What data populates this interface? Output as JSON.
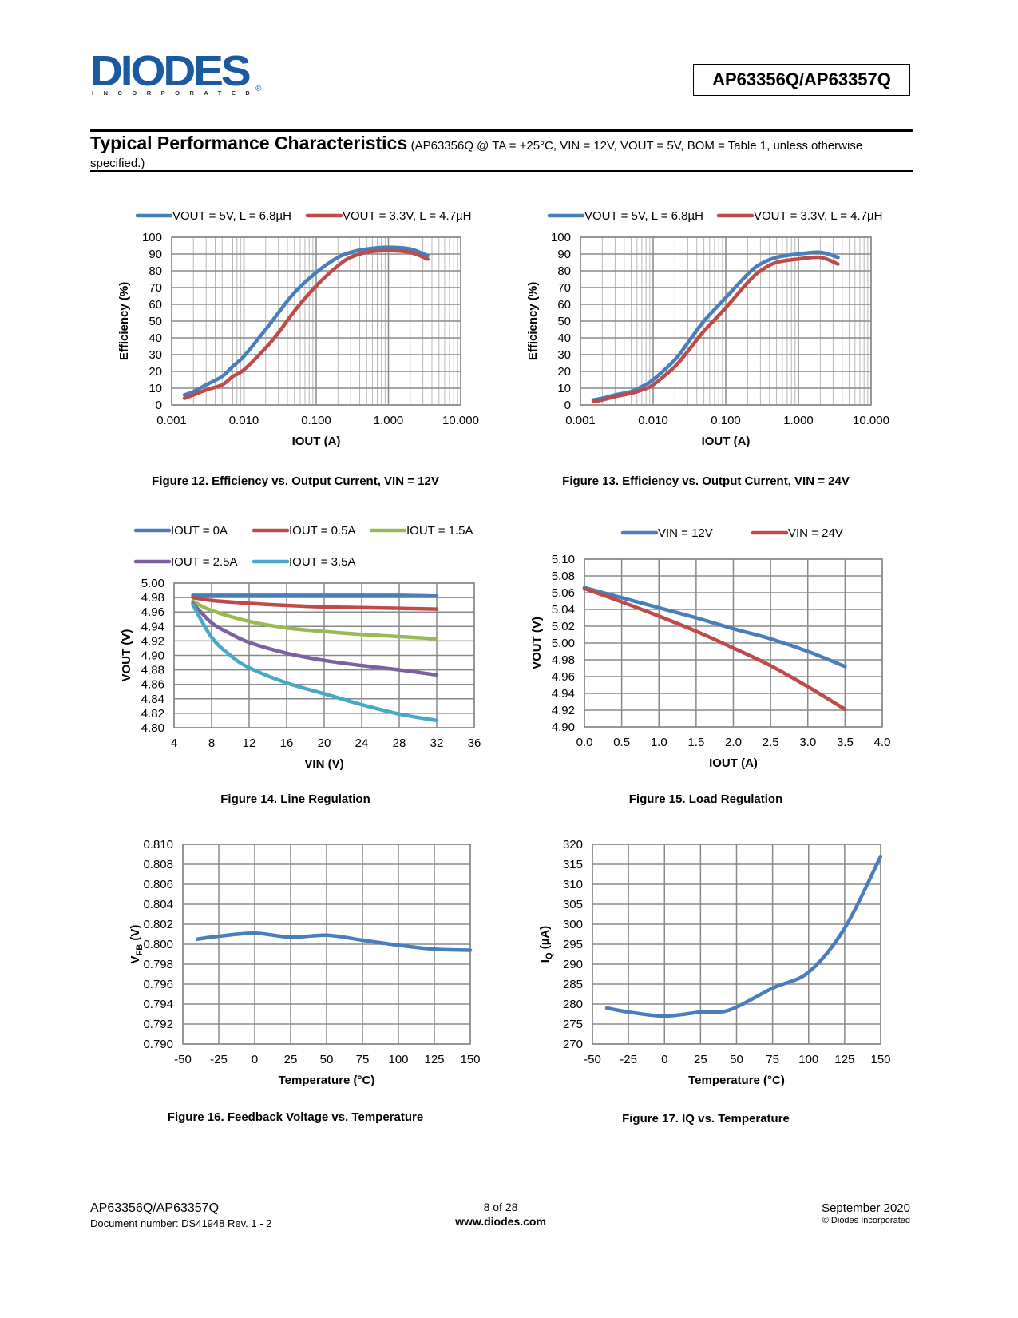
{
  "header": {
    "logo_main": "DIODES",
    "logo_sub": "INCORPORATED",
    "logo_reg": "®",
    "part_number": "AP63356Q/AP63357Q"
  },
  "section": {
    "title": "Typical Performance Characteristics",
    "conditions": "(AP63356Q @ TA = +25°C, VIN = 12V, VOUT = 5V, BOM = Table 1, unless otherwise specified.)"
  },
  "footer": {
    "part": "AP63356Q/AP63357Q",
    "doc_number": "Document number: DS41948 Rev. 1 - 2",
    "page": "8 of 28",
    "website": "www.diodes.com",
    "date": "September 2020",
    "copyright": "© Diodes Incorporated"
  },
  "colors": {
    "blue": "#4a7ebb",
    "red": "#be4b48",
    "green": "#98b954",
    "purple": "#7d60a0",
    "cyan": "#46aac5",
    "grid": "#999999"
  },
  "chart_data": [
    {
      "id": "fig12",
      "type": "line",
      "caption": "Figure 12. Efficiency vs. Output Current, VIN = 12V",
      "xlabel": "IOUT (A)",
      "ylabel": "Efficiency (%)",
      "xscale": "log",
      "xlim": [
        0.001,
        10
      ],
      "ylim": [
        0,
        100
      ],
      "xticks": [
        "0.001",
        "0.010",
        "0.100",
        "1.000",
        "10.000"
      ],
      "yticks": [
        "0",
        "10",
        "20",
        "30",
        "40",
        "50",
        "60",
        "70",
        "80",
        "90",
        "100"
      ],
      "legend": "top",
      "grid": true,
      "series": [
        {
          "name": "VOUT = 5V, L = 6.8µH",
          "color": "blue",
          "x": [
            0.0015,
            0.002,
            0.003,
            0.005,
            0.007,
            0.01,
            0.02,
            0.03,
            0.05,
            0.1,
            0.2,
            0.3,
            0.5,
            1.0,
            2.0,
            3.5
          ],
          "y": [
            6,
            8,
            12,
            17,
            23,
            29,
            45,
            55,
            67,
            79,
            88,
            91,
            93,
            94,
            93,
            89
          ]
        },
        {
          "name": "VOUT = 3.3V, L = 4.7µH",
          "color": "red",
          "x": [
            0.0015,
            0.002,
            0.003,
            0.005,
            0.007,
            0.01,
            0.02,
            0.03,
            0.05,
            0.1,
            0.2,
            0.3,
            0.5,
            1.0,
            2.0,
            3.5
          ],
          "y": [
            4,
            6,
            9,
            12,
            17,
            21,
            34,
            43,
            56,
            71,
            83,
            88,
            91,
            92,
            91,
            87
          ]
        }
      ]
    },
    {
      "id": "fig13",
      "type": "line",
      "caption": "Figure 13. Efficiency vs. Output Current, VIN = 24V",
      "xlabel": "IOUT (A)",
      "ylabel": "Efficiency (%)",
      "xscale": "log",
      "xlim": [
        0.001,
        10
      ],
      "ylim": [
        0,
        100
      ],
      "xticks": [
        "0.001",
        "0.010",
        "0.100",
        "1.000",
        "10.000"
      ],
      "yticks": [
        "0",
        "10",
        "20",
        "30",
        "40",
        "50",
        "60",
        "70",
        "80",
        "90",
        "100"
      ],
      "legend": "top",
      "grid": true,
      "series": [
        {
          "name": "VOUT = 5V, L = 6.8µH",
          "color": "blue",
          "x": [
            0.0015,
            0.002,
            0.003,
            0.005,
            0.007,
            0.01,
            0.02,
            0.03,
            0.05,
            0.1,
            0.2,
            0.3,
            0.5,
            1.0,
            2.0,
            3.5
          ],
          "y": [
            3,
            4,
            6,
            8,
            11,
            15,
            27,
            37,
            50,
            64,
            78,
            84,
            88,
            90,
            91,
            88
          ]
        },
        {
          "name": "VOUT = 3.3V, L = 4.7µH",
          "color": "red",
          "x": [
            0.0015,
            0.002,
            0.003,
            0.005,
            0.007,
            0.01,
            0.02,
            0.03,
            0.05,
            0.1,
            0.2,
            0.3,
            0.5,
            1.0,
            2.0,
            3.5
          ],
          "y": [
            2,
            3,
            5,
            7,
            9,
            12,
            23,
            32,
            44,
            58,
            73,
            80,
            85,
            87,
            88,
            84
          ]
        }
      ]
    },
    {
      "id": "fig14",
      "type": "line",
      "caption": "Figure 14. Line Regulation",
      "xlabel": "VIN (V)",
      "ylabel": "VOUT (V)",
      "xlim": [
        4,
        36
      ],
      "ylim": [
        4.8,
        5.0
      ],
      "xticks": [
        "4",
        "8",
        "12",
        "16",
        "20",
        "24",
        "28",
        "32",
        "36"
      ],
      "yticks": [
        "4.80",
        "4.82",
        "4.84",
        "4.86",
        "4.88",
        "4.90",
        "4.92",
        "4.94",
        "4.96",
        "4.98",
        "5.00"
      ],
      "legend": "top",
      "grid": true,
      "series": [
        {
          "name": "IOUT = 0A",
          "color": "blue",
          "x": [
            6,
            8,
            12,
            16,
            20,
            24,
            28,
            32
          ],
          "y": [
            4.983,
            4.983,
            4.983,
            4.983,
            4.983,
            4.983,
            4.983,
            4.982
          ]
        },
        {
          "name": "IOUT = 0.5A",
          "color": "red",
          "x": [
            6,
            8,
            12,
            16,
            20,
            24,
            28,
            32
          ],
          "y": [
            4.98,
            4.976,
            4.972,
            4.969,
            4.967,
            4.966,
            4.965,
            4.964
          ]
        },
        {
          "name": "IOUT = 1.5A",
          "color": "green",
          "x": [
            6,
            8,
            12,
            16,
            20,
            24,
            28,
            32
          ],
          "y": [
            4.975,
            4.962,
            4.947,
            4.938,
            4.933,
            4.929,
            4.926,
            4.923
          ]
        },
        {
          "name": "IOUT = 2.5A",
          "color": "purple",
          "x": [
            6,
            8,
            10,
            12,
            16,
            20,
            24,
            28,
            32
          ],
          "y": [
            4.972,
            4.945,
            4.93,
            4.918,
            4.903,
            4.893,
            4.886,
            4.88,
            4.873
          ]
        },
        {
          "name": "IOUT = 3.5A",
          "color": "cyan",
          "x": [
            6,
            8,
            10,
            12,
            16,
            20,
            24,
            28,
            32
          ],
          "y": [
            4.97,
            4.925,
            4.9,
            4.883,
            4.862,
            4.847,
            4.832,
            4.819,
            4.81
          ]
        }
      ]
    },
    {
      "id": "fig15",
      "type": "line",
      "caption": "Figure 15. Load Regulation",
      "xlabel": "IOUT (A)",
      "ylabel": "VOUT (V)",
      "xlim": [
        0,
        4
      ],
      "ylim": [
        4.9,
        5.1
      ],
      "xticks": [
        "0.0",
        "0.5",
        "1.0",
        "1.5",
        "2.0",
        "2.5",
        "3.0",
        "3.5",
        "4.0"
      ],
      "yticks": [
        "4.90",
        "4.92",
        "4.94",
        "4.96",
        "4.98",
        "5.00",
        "5.02",
        "5.04",
        "5.06",
        "5.08",
        "5.10"
      ],
      "legend": "top",
      "grid": true,
      "series": [
        {
          "name": "VIN = 12V",
          "color": "blue",
          "x": [
            0,
            0.5,
            1.0,
            1.5,
            2.0,
            2.5,
            3.0,
            3.5
          ],
          "y": [
            5.066,
            5.054,
            5.042,
            5.03,
            5.017,
            5.005,
            4.99,
            4.972
          ]
        },
        {
          "name": "VIN = 24V",
          "color": "red",
          "x": [
            0,
            0.5,
            1.0,
            1.5,
            2.0,
            2.5,
            3.0,
            3.5
          ],
          "y": [
            5.065,
            5.049,
            5.032,
            5.014,
            4.994,
            4.973,
            4.948,
            4.921
          ]
        }
      ]
    },
    {
      "id": "fig16",
      "type": "line",
      "caption": "Figure 16. Feedback Voltage vs. Temperature",
      "xlabel": "Temperature (°C)",
      "ylabel": "VFB (V)",
      "xlim": [
        -50,
        150
      ],
      "ylim": [
        0.79,
        0.81
      ],
      "xticks": [
        "-50",
        "-25",
        "0",
        "25",
        "50",
        "75",
        "100",
        "125",
        "150"
      ],
      "yticks": [
        "0.790",
        "0.792",
        "0.794",
        "0.796",
        "0.798",
        "0.800",
        "0.802",
        "0.804",
        "0.806",
        "0.808",
        "0.810"
      ],
      "legend": "none",
      "grid": true,
      "series": [
        {
          "name": "VFB",
          "color": "blue",
          "x": [
            -40,
            -25,
            0,
            25,
            50,
            75,
            100,
            125,
            150
          ],
          "y": [
            0.8005,
            0.8008,
            0.8011,
            0.8007,
            0.8009,
            0.8004,
            0.7999,
            0.7995,
            0.7994
          ]
        }
      ]
    },
    {
      "id": "fig17",
      "type": "line",
      "caption": "Figure 17. IQ vs. Temperature",
      "xlabel": "Temperature (°C)",
      "ylabel": "IQ (µA)",
      "xlim": [
        -50,
        150
      ],
      "ylim": [
        270,
        320
      ],
      "xticks": [
        "-50",
        "-25",
        "0",
        "25",
        "50",
        "75",
        "100",
        "125",
        "150"
      ],
      "yticks": [
        "270",
        "275",
        "280",
        "285",
        "290",
        "295",
        "300",
        "305",
        "310",
        "315",
        "320"
      ],
      "legend": "none",
      "grid": true,
      "series": [
        {
          "name": "IQ",
          "color": "blue",
          "x": [
            -40,
            -25,
            0,
            25,
            45,
            75,
            100,
            125,
            150
          ],
          "y": [
            279,
            278,
            277,
            278,
            278.5,
            284,
            288,
            299,
            317
          ]
        }
      ]
    }
  ]
}
